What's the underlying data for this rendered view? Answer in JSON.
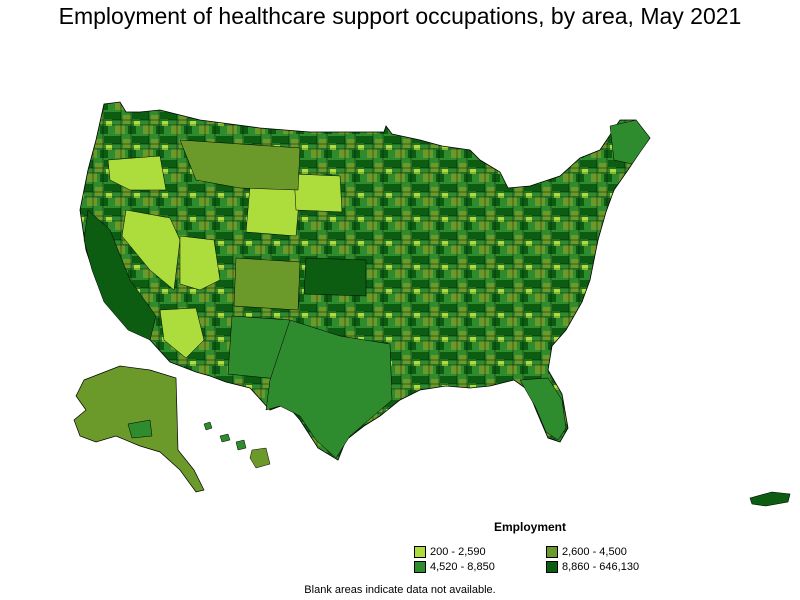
{
  "title": "Employment of healthcare support occupations, by area, May 2021",
  "legend": {
    "title": "Employment",
    "items": [
      {
        "label": "200 - 2,590",
        "color": "#addd3c"
      },
      {
        "label": "2,600 - 4,500",
        "color": "#6b9a2a"
      },
      {
        "label": "4,520 - 8,850",
        "color": "#2e8b2e"
      },
      {
        "label": "8,860 - 646,130",
        "color": "#0c5c12"
      }
    ]
  },
  "footnote": "Blank areas indicate data not available.",
  "map": {
    "region": "United States, Alaska, Hawaii, Puerto Rico",
    "outline_color": "#000000"
  }
}
